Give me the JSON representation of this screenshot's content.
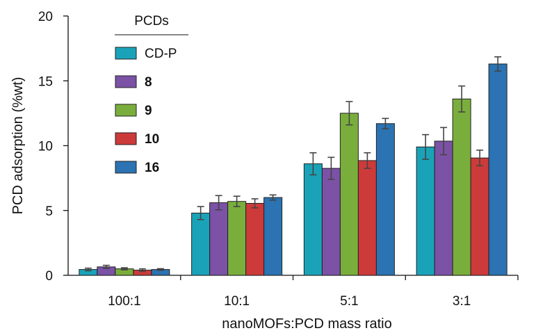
{
  "chart_data": {
    "type": "bar",
    "title": "",
    "xlabel": "nanoMOFs:PCD mass ratio",
    "ylabel": "PCD adsorption (%wt)",
    "ylim": [
      0,
      20
    ],
    "yticks": [
      "0",
      "5",
      "10",
      "15",
      "20"
    ],
    "categories": [
      "100:1",
      "10:1",
      "5:1",
      "3:1"
    ],
    "legend": {
      "title": "PCDs",
      "position": "top-left"
    },
    "series": [
      {
        "name": "CD-P",
        "bold": false,
        "color": "#1aa3b8",
        "values": [
          0.45,
          4.8,
          8.6,
          9.9
        ],
        "errors": [
          0.1,
          0.5,
          0.85,
          0.95
        ]
      },
      {
        "name": "8",
        "bold": true,
        "color": "#7b52a6",
        "values": [
          0.65,
          5.6,
          8.25,
          10.35
        ],
        "errors": [
          0.12,
          0.55,
          0.85,
          1.05
        ]
      },
      {
        "name": "9",
        "bold": true,
        "color": "#7aae3c",
        "values": [
          0.5,
          5.7,
          12.5,
          13.6
        ],
        "errors": [
          0.08,
          0.4,
          0.9,
          1.0
        ]
      },
      {
        "name": "10",
        "bold": true,
        "color": "#cc3b3a",
        "values": [
          0.4,
          5.55,
          8.85,
          9.05
        ],
        "errors": [
          0.1,
          0.35,
          0.6,
          0.6
        ]
      },
      {
        "name": "16",
        "bold": true,
        "color": "#2b73b2",
        "values": [
          0.45,
          6.0,
          11.7,
          16.3
        ],
        "errors": [
          0.06,
          0.2,
          0.4,
          0.55
        ]
      }
    ]
  }
}
